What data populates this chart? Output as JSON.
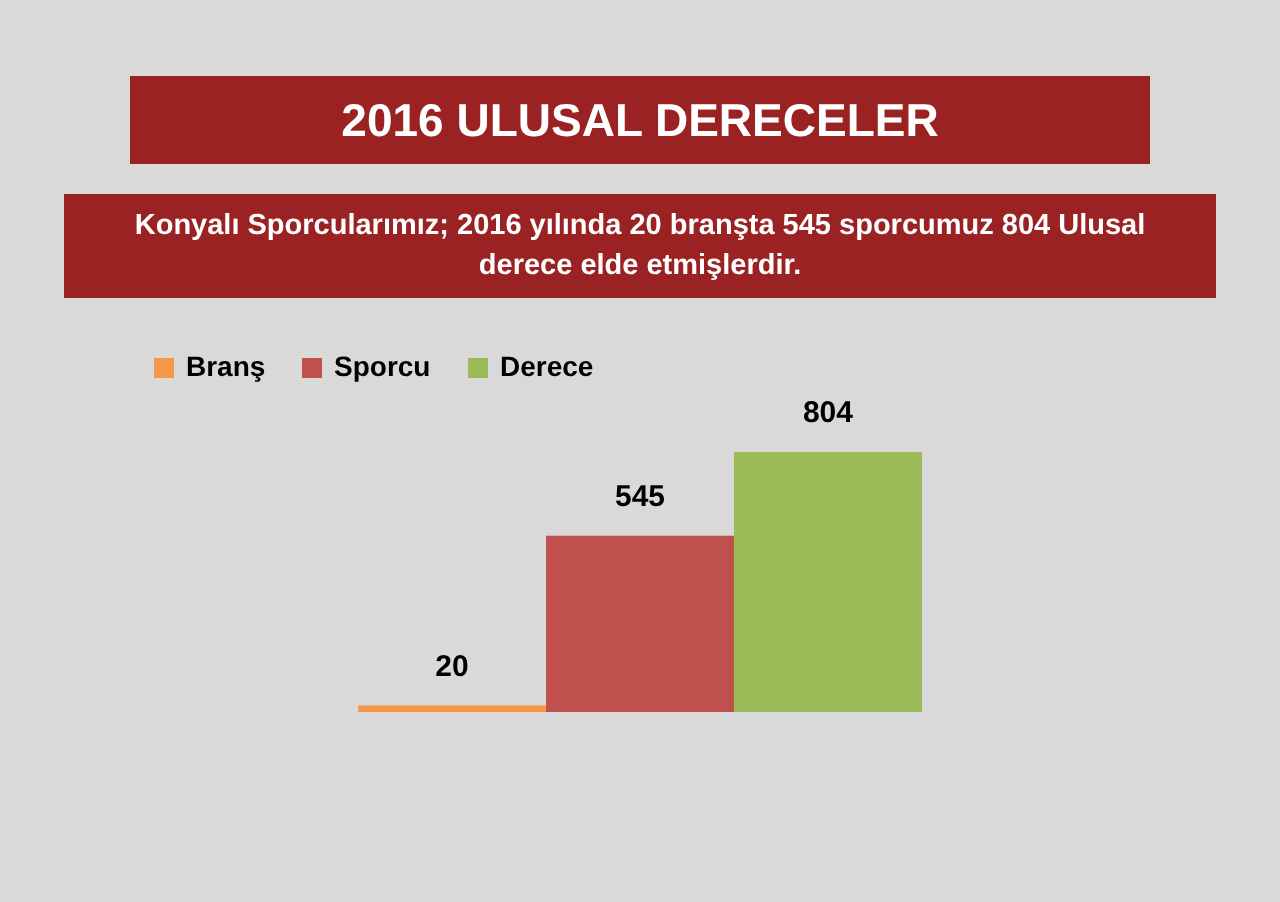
{
  "chart_data": {
    "type": "bar",
    "title": "2016 ULUSAL DERECELER",
    "subtitle": "Konyalı Sporcularımız; 2016 yılında 20 branşta 545 sporcumuz 804 Ulusal derece elde etmişlerdir.",
    "categories": [
      null
    ],
    "series": [
      {
        "name": "Branş",
        "color": "#f79646",
        "values": [
          20
        ]
      },
      {
        "name": "Sporcu",
        "color": "#c0504d",
        "values": [
          545
        ]
      },
      {
        "name": "Derece",
        "color": "#9bbb59",
        "values": [
          804
        ]
      }
    ],
    "data_labels": true,
    "legend": "top left",
    "tick_labels": false
  }
}
